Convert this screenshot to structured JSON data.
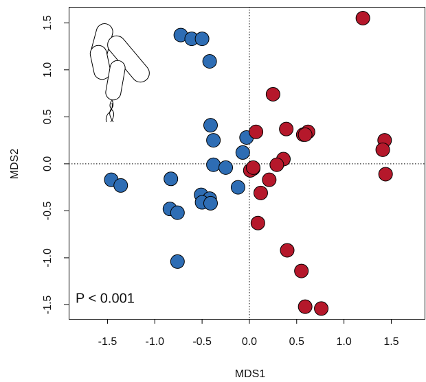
{
  "chart_data": {
    "type": "scatter",
    "x_label": "MDS1",
    "y_label": "MDS2",
    "annotation": "P < 0.001",
    "xlim": [
      -1.91,
      1.86
    ],
    "ylim": [
      -1.65,
      1.67
    ],
    "xticks": [
      -1.5,
      {
        "value": -1,
        "label": "-1.0"
      },
      -0.5,
      {
        "value": 0,
        "label": "0.0"
      },
      0.5,
      {
        "value": 1,
        "label": "1.0"
      },
      1.5
    ],
    "yticks": [
      -1.5,
      {
        "value": -1,
        "label": "-1.0"
      },
      -0.5,
      {
        "value": 0,
        "label": "0.0"
      },
      0.5,
      {
        "value": 1,
        "label": "1.0"
      },
      1.5
    ],
    "series": [
      {
        "color": "#2e6db4",
        "x": [
          -0.725,
          -0.61,
          -0.5,
          -0.42,
          -0.41,
          -0.38,
          -0.38,
          -0.25,
          -0.03,
          -0.07,
          0.04,
          -0.12,
          -1.46,
          -1.36,
          -0.83,
          -0.84,
          -0.76,
          -0.76,
          -0.51,
          -0.42,
          -0.5,
          -0.41
        ],
        "values": [
          1.37,
          1.33,
          1.33,
          1.09,
          0.41,
          0.25,
          -0.01,
          -0.04,
          0.28,
          0.12,
          -0.05,
          -0.25,
          -0.17,
          -0.23,
          -0.16,
          -0.48,
          -0.52,
          -1.04,
          -0.33,
          -0.37,
          -0.41,
          -0.42
        ]
      },
      {
        "color": "#b5182b",
        "x": [
          1.2,
          0.25,
          0.07,
          0.39,
          0.57,
          0.62,
          0.59,
          1.43,
          1.41,
          1.44,
          0.36,
          0.29,
          0.21,
          0.01,
          0.04,
          0.12,
          0.09,
          0.4,
          0.55,
          0.59,
          0.76
        ],
        "values": [
          1.55,
          0.74,
          0.34,
          0.37,
          0.31,
          0.34,
          0.31,
          0.25,
          0.15,
          -0.11,
          0.05,
          -0.01,
          -0.17,
          -0.07,
          -0.04,
          -0.31,
          -0.63,
          -0.92,
          -1.14,
          -1.52,
          -1.54
        ]
      }
    ]
  }
}
